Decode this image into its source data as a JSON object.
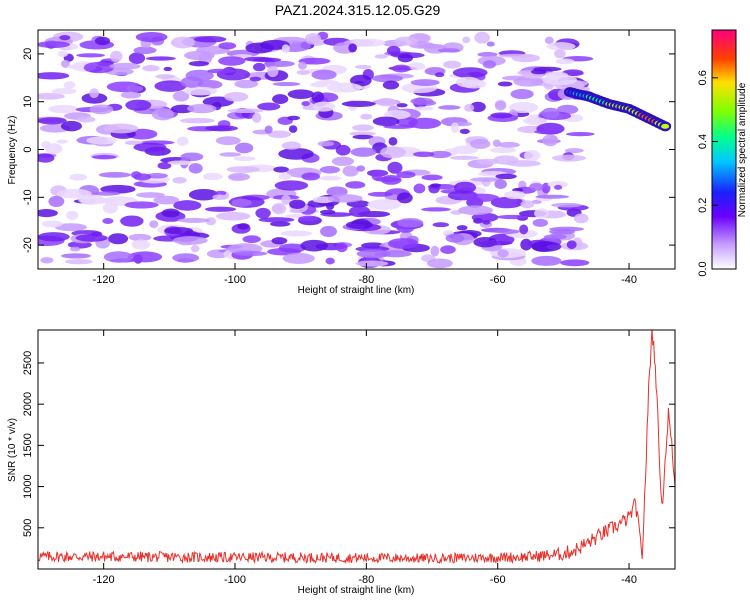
{
  "title": "PAZ1.2024.315.12.05.G29",
  "chart_data": [
    {
      "type": "heatmap",
      "xlabel": "Height of straight line (km)",
      "ylabel": "Frequency (Hz)",
      "xlim": [
        -130,
        -33
      ],
      "ylim": [
        -25,
        25
      ],
      "xticks": [
        -120,
        -100,
        -80,
        -60,
        -40
      ],
      "yticks": [
        -20,
        -10,
        0,
        10,
        20
      ],
      "colorbar": {
        "label": "Normalized spectral amplitude",
        "range": [
          0.0,
          0.75
        ],
        "ticks": [
          0.0,
          0.2,
          0.4,
          0.6
        ]
      },
      "noise_region": {
        "x": [
          -129,
          -47
        ],
        "y": [
          -24,
          24
        ]
      },
      "signal_ridge": [
        {
          "x": -49,
          "y": 12,
          "v": 0.25
        },
        {
          "x": -46,
          "y": 11,
          "v": 0.45
        },
        {
          "x": -43,
          "y": 9.5,
          "v": 0.55
        },
        {
          "x": -40,
          "y": 8.5,
          "v": 0.6
        },
        {
          "x": -37,
          "y": 6.5,
          "v": 0.7
        },
        {
          "x": -34,
          "y": 4.5,
          "v": 0.6
        }
      ]
    },
    {
      "type": "line",
      "xlabel": "Height of straight line (km)",
      "ylabel": "SNR (10 * v/v)",
      "xlim": [
        -130,
        -33
      ],
      "ylim": [
        0,
        2900
      ],
      "xticks": [
        -120,
        -100,
        -80,
        -60,
        -40
      ],
      "yticks": [
        500,
        1000,
        1500,
        2000,
        2500
      ],
      "series": [
        {
          "color": "#e8302a",
          "x": [
            -130,
            -120,
            -110,
            -100,
            -90,
            -80,
            -70,
            -60,
            -55,
            -50,
            -48,
            -46,
            -44,
            -42,
            -40,
            -39,
            -38,
            -37.5,
            -37,
            -36.5,
            -36,
            -35.5,
            -35,
            -34.5,
            -34,
            -33.5,
            -33
          ],
          "values": [
            150,
            150,
            145,
            140,
            140,
            135,
            130,
            140,
            150,
            180,
            240,
            330,
            430,
            520,
            620,
            800,
            150,
            1100,
            2200,
            2900,
            2500,
            1600,
            720,
            1300,
            1900,
            1500,
            1000
          ]
        }
      ]
    }
  ]
}
